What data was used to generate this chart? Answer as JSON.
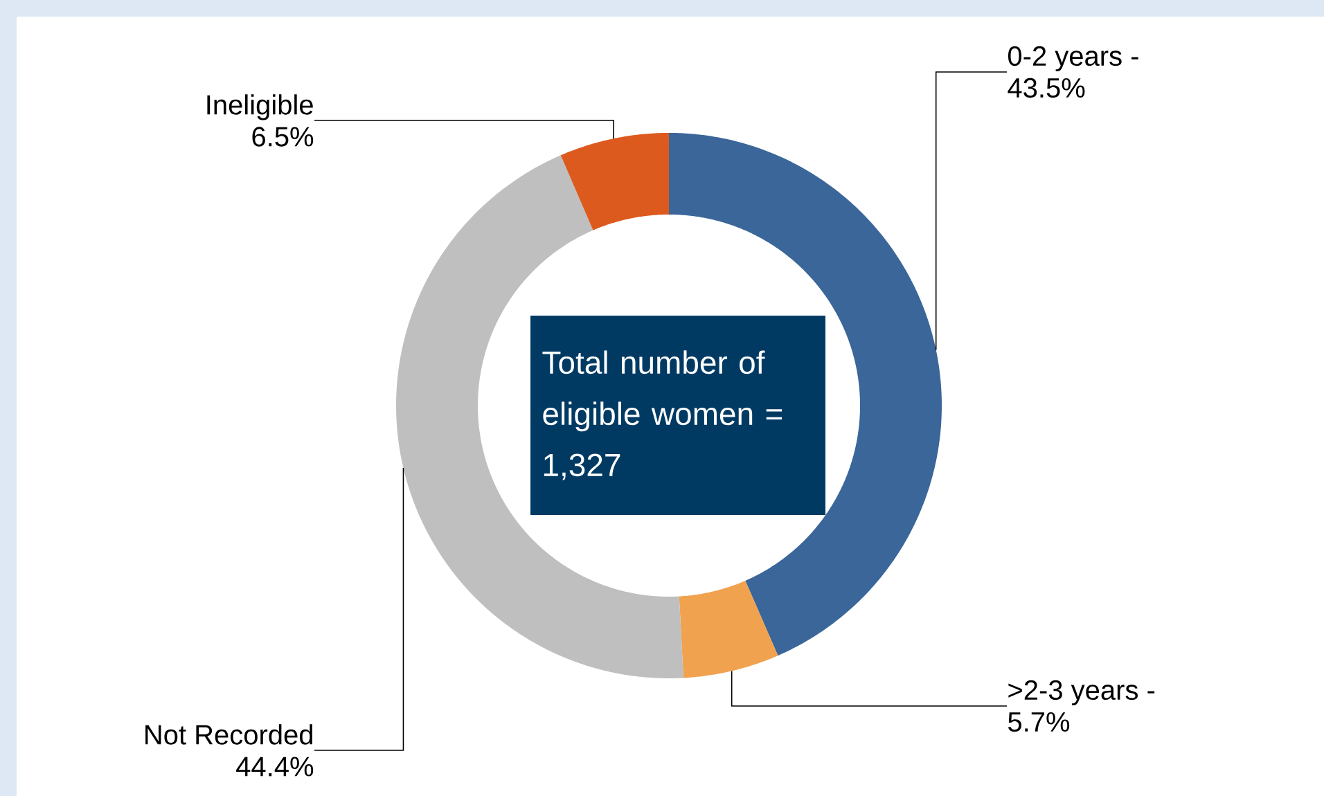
{
  "chart_data": {
    "type": "donut",
    "categories": [
      "0-2 years -",
      ">2-3 years -",
      "Not Recorded",
      "Ineligible"
    ],
    "values": [
      43.5,
      5.7,
      44.4,
      6.5
    ],
    "colors": [
      "#3a6699",
      "#f0a24f",
      "#bfbfbf",
      "#dd5a1e"
    ],
    "value_labels": [
      "43.5%",
      "5.7%",
      "44.4%",
      "6.5%"
    ],
    "annotations": [
      "Total number of eligible women = 1,327"
    ]
  }
}
